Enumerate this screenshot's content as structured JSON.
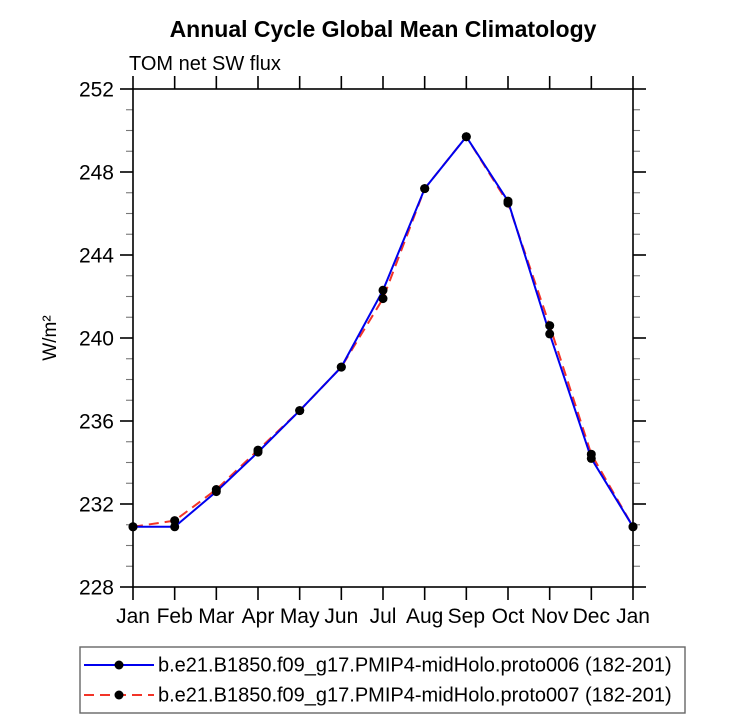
{
  "chart_data": {
    "type": "line",
    "title": "Annual Cycle Global Mean Climatology",
    "subtitle": "TOM net SW flux",
    "ylabel": "W/m²",
    "x_labels": [
      "Jan",
      "Feb",
      "Mar",
      "Apr",
      "May",
      "Jun",
      "Jul",
      "Aug",
      "Sep",
      "Oct",
      "Nov",
      "Dec",
      "Jan"
    ],
    "ylim": [
      228,
      252
    ],
    "yticks_major": [
      228,
      232,
      236,
      240,
      244,
      248,
      252
    ],
    "ytick_minor_step": 1,
    "grid": false,
    "legend_position": "bottom",
    "axis_color": "#000000",
    "series": [
      {
        "name": "b.e21.B1850.f09_g17.PMIP4-midHolo.proto006 (182-201)",
        "color": "#0000ee",
        "style": "solid",
        "marker": "circle",
        "marker_color": "#000000",
        "values": [
          230.9,
          230.9,
          232.6,
          234.5,
          236.5,
          238.6,
          242.3,
          247.2,
          249.7,
          246.6,
          240.2,
          234.2,
          230.9
        ]
      },
      {
        "name": "b.e21.B1850.f09_g17.PMIP4-midHolo.proto007 (182-201)",
        "color": "#f23428",
        "style": "dashed",
        "marker": "circle",
        "marker_color": "#000000",
        "values": [
          230.9,
          231.2,
          232.7,
          234.6,
          236.5,
          238.6,
          241.9,
          247.2,
          249.7,
          246.5,
          240.6,
          234.4,
          230.9
        ]
      }
    ]
  }
}
